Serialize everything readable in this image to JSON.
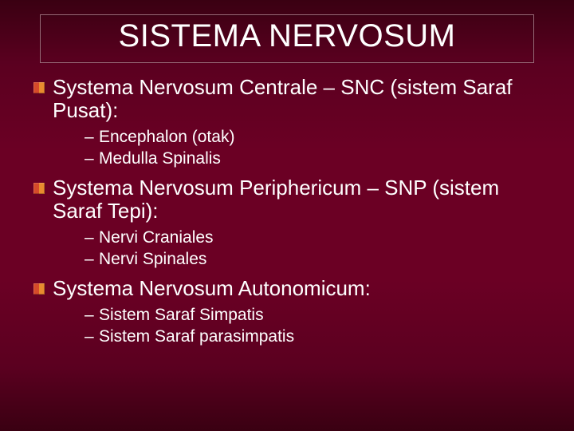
{
  "slide": {
    "title": "SISTEMA NERVOSUM",
    "title_fontsize": 40,
    "title_color": "#ffffff",
    "title_border_color": "#9a6a78",
    "background_gradient": [
      "#3a0012",
      "#5b0020",
      "#6b0024",
      "#6b0024",
      "#5b0020",
      "#3a0012"
    ],
    "text_color": "#ffffff",
    "bullet_colors": {
      "left": "#d54a2a",
      "right": "#e88b2f"
    },
    "top_fontsize": 26,
    "sub_fontsize": 21,
    "items": [
      {
        "label": "Systema Nervosum Centrale – SNC (sistem Saraf Pusat):",
        "sub": [
          "Encephalon (otak)",
          "Medulla Spinalis"
        ]
      },
      {
        "label": "Systema Nervosum Periphericum – SNP (sistem Saraf Tepi):",
        "sub": [
          "Nervi Craniales",
          "Nervi Spinales"
        ]
      },
      {
        "label": "Systema Nervosum Autonomicum:",
        "sub": [
          "Sistem Saraf Simpatis",
          "Sistem Saraf parasimpatis"
        ]
      }
    ]
  }
}
